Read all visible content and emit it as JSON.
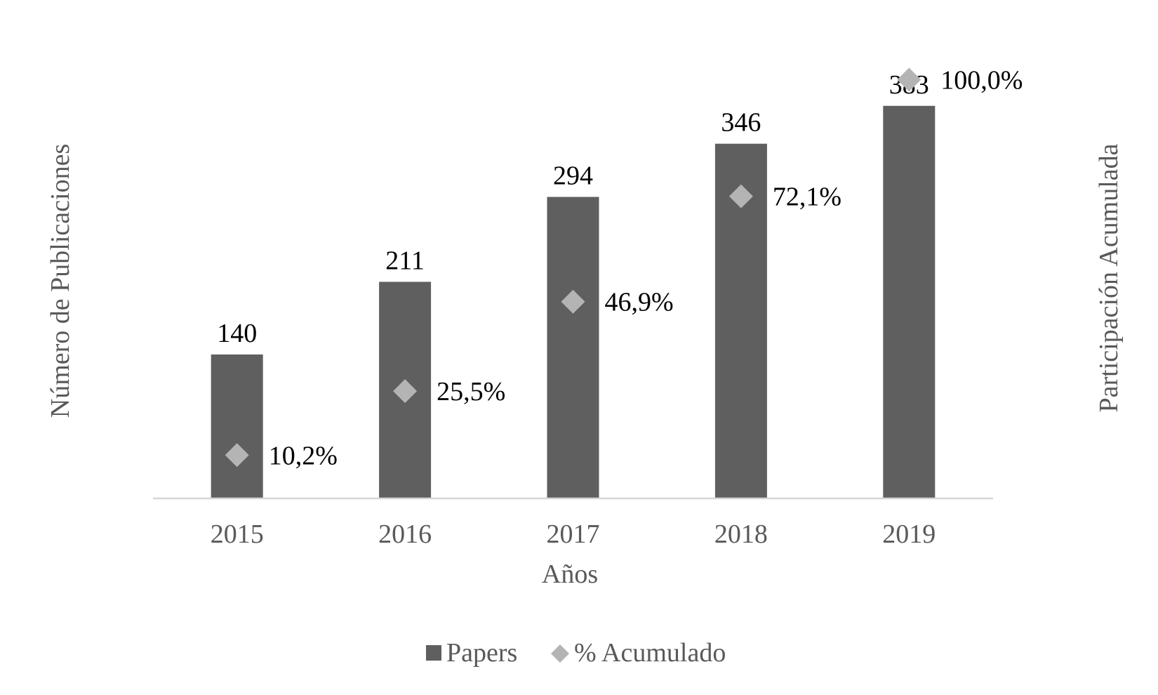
{
  "chart_data": {
    "type": "bar",
    "categories": [
      "2015",
      "2016",
      "2017",
      "2018",
      "2019"
    ],
    "series": [
      {
        "name": "Papers",
        "kind": "bar",
        "axis": "left",
        "values": [
          140,
          211,
          294,
          346,
          383
        ],
        "labels": [
          "140",
          "211",
          "294",
          "346",
          "383"
        ],
        "color": "#5f5f5f"
      },
      {
        "name": "% Acumulado",
        "kind": "scatter",
        "marker": "diamond",
        "axis": "right",
        "values": [
          10.2,
          25.5,
          46.9,
          72.1,
          100.0
        ],
        "labels": [
          "10,2%",
          "25,5%",
          "46,9%",
          "72,1%",
          "100,0%"
        ],
        "color": "#b4b4b4"
      }
    ],
    "xlabel": "Años",
    "ylabel": "Número de Publicaciones",
    "y2label": "Participación Acumulada",
    "ylim": [
      0,
      400
    ],
    "y2lim": [
      0,
      105
    ],
    "grid": false,
    "legend_position": "bottom"
  },
  "colors": {
    "bar": "#5f5f5f",
    "marker": "#b4b4b4",
    "axis_line": "#d6d6d6",
    "axis_text": "#595959",
    "data_label": "#000000"
  }
}
